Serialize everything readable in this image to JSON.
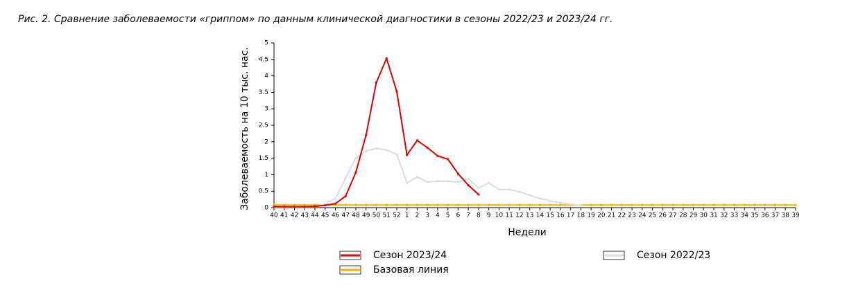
{
  "chart_data": {
    "type": "line",
    "title": "Рис. 2. Сравнение заболеваемости «гриппом» по данным клинической диагностики в сезоны 2022/23 и 2023/24 гг.",
    "x_label": "Недели",
    "y_label": "Заболеваемость на 10 тыс. нас.",
    "categories": [
      "40",
      "41",
      "42",
      "43",
      "44",
      "45",
      "46",
      "47",
      "48",
      "49",
      "50",
      "51",
      "52",
      "1",
      "2",
      "3",
      "4",
      "5",
      "6",
      "7",
      "8",
      "9",
      "10",
      "11",
      "12",
      "13",
      "14",
      "15",
      "16",
      "17",
      "18",
      "19",
      "20",
      "21",
      "22",
      "23",
      "24",
      "25",
      "26",
      "27",
      "28",
      "29",
      "30",
      "31",
      "32",
      "33",
      "34",
      "35",
      "36",
      "37",
      "38",
      "39"
    ],
    "series": [
      {
        "name": "Сезон 2023/24",
        "color": "#e00000",
        "values": [
          0.03,
          0.03,
          0.03,
          0.03,
          0.04,
          0.07,
          0.12,
          0.35,
          1.07,
          2.2,
          3.8,
          4.53,
          3.53,
          1.6,
          2.04,
          1.82,
          1.57,
          1.47,
          1.03,
          0.68,
          0.4,
          null,
          null,
          null,
          null,
          null,
          null,
          null,
          null,
          null,
          null,
          null,
          null,
          null,
          null,
          null,
          null,
          null,
          null,
          null,
          null,
          null,
          null,
          null,
          null,
          null,
          null,
          null,
          null,
          null,
          null,
          null
        ]
      },
      {
        "name": "Базовая линия",
        "color": "#f0b400",
        "values": [
          0.08,
          0.08,
          0.08,
          0.08,
          0.08,
          0.08,
          0.08,
          0.08,
          0.08,
          0.08,
          0.08,
          0.08,
          0.08,
          0.08,
          0.08,
          0.08,
          0.08,
          0.08,
          0.08,
          0.08,
          0.08,
          0.08,
          0.08,
          0.08,
          0.08,
          0.08,
          0.08,
          0.08,
          0.08,
          0.08,
          0.08,
          0.08,
          0.08,
          0.08,
          0.08,
          0.08,
          0.08,
          0.08,
          0.08,
          0.08,
          0.08,
          0.08,
          0.08,
          0.08,
          0.08,
          0.08,
          0.08,
          0.08,
          0.08,
          0.08,
          0.08,
          0.08
        ]
      },
      {
        "name": "Сезон 2022/23",
        "color": "#dcdcdc",
        "values": [
          0.02,
          0.02,
          0.02,
          0.02,
          0.03,
          0.1,
          0.28,
          0.9,
          1.5,
          1.72,
          1.8,
          1.75,
          1.62,
          0.75,
          0.93,
          0.78,
          0.8,
          0.8,
          0.78,
          0.88,
          0.6,
          0.75,
          0.55,
          0.55,
          0.48,
          0.38,
          0.28,
          0.2,
          0.15,
          0.1,
          0.08,
          null,
          null,
          null,
          null,
          null,
          null,
          null,
          null,
          null,
          null,
          null,
          null,
          null,
          null,
          null,
          null,
          null,
          null,
          null,
          null,
          null
        ]
      }
    ],
    "ylim": [
      0,
      5
    ],
    "yticks": [
      0,
      0.5,
      1,
      1.5,
      2,
      2.5,
      3,
      3.5,
      4,
      4.5,
      5
    ]
  }
}
